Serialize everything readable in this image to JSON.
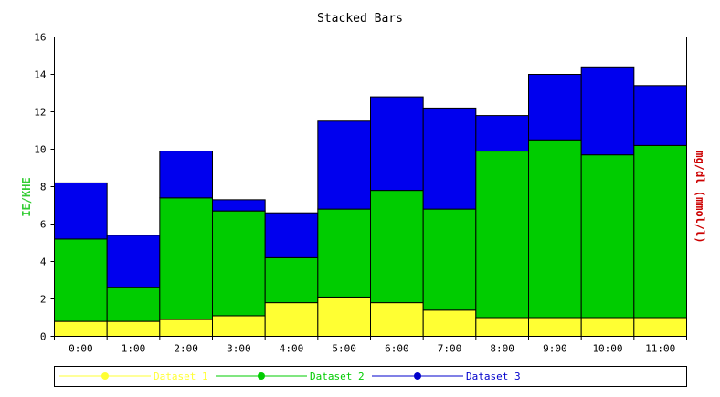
{
  "chart_data": {
    "type": "bar",
    "stacked": true,
    "title": "Stacked Bars",
    "ylabel_left": "IE/KHE",
    "ylabel_right": "mg/dl (mmol/l)",
    "xlabel": "",
    "ylim": [
      0,
      16
    ],
    "yticks": [
      "0",
      "2",
      "4",
      "6",
      "8",
      "10",
      "12",
      "14",
      "16"
    ],
    "categories": [
      "0:00",
      "1:00",
      "2:00",
      "3:00",
      "4:00",
      "5:00",
      "6:00",
      "7:00",
      "8:00",
      "9:00",
      "10:00",
      "11:00"
    ],
    "grid": false,
    "legend_position": "bottom",
    "series": [
      {
        "name": "Dataset 1",
        "color": "#ffff33",
        "line_color": "#ffff33",
        "values": [
          0.8,
          0.8,
          0.9,
          1.1,
          1.8,
          2.1,
          1.8,
          1.4,
          1.0,
          1.0,
          1.0,
          1.0
        ]
      },
      {
        "name": "Dataset 2",
        "color": "#00cc00",
        "line_color": "#00cc00",
        "values": [
          4.4,
          1.8,
          6.5,
          5.6,
          2.4,
          4.7,
          6.0,
          5.4,
          8.9,
          9.5,
          8.7,
          9.2
        ]
      },
      {
        "name": "Dataset 3",
        "color": "#0000ee",
        "line_color": "#0000cc",
        "values": [
          3.0,
          2.8,
          2.5,
          0.6,
          2.4,
          4.7,
          5.0,
          5.4,
          1.9,
          3.5,
          4.7,
          3.2
        ]
      }
    ]
  }
}
